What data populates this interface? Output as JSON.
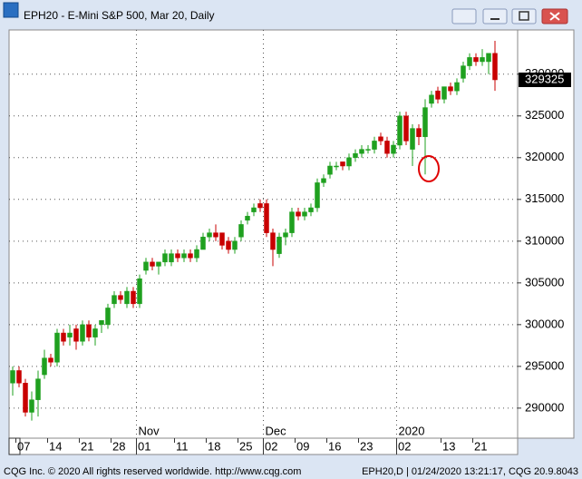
{
  "window": {
    "title": "EPH20 - E-Mini S&P 500, Mar 20, Daily",
    "status_left": "CQG Inc. © 2020 All rights reserved worldwide. http://www.cqg.com",
    "status_right": "EPH20,D | 01/24/2020 13:21:17, CQG 20.9.8043"
  },
  "chart_data": {
    "type": "candlestick",
    "up_color": "#1fa01f",
    "down_color": "#c80000",
    "grid": true,
    "ylim": [
      286400,
      335300
    ],
    "yticks": [
      290000,
      295000,
      300000,
      305000,
      310000,
      315000,
      320000,
      325000,
      330000
    ],
    "categories": [
      null,
      "07",
      null,
      null,
      null,
      null,
      "14",
      null,
      null,
      null,
      null,
      "21",
      null,
      null,
      null,
      null,
      "28",
      null,
      null,
      null,
      "01",
      null,
      null,
      null,
      null,
      null,
      "11",
      null,
      null,
      null,
      null,
      "18",
      null,
      null,
      null,
      null,
      "25",
      null,
      null,
      null,
      "02",
      null,
      null,
      null,
      null,
      "09",
      null,
      null,
      null,
      null,
      "16",
      null,
      null,
      null,
      null,
      "23",
      null,
      null,
      null,
      null,
      null,
      "02",
      null,
      null,
      null,
      null,
      null,
      null,
      "13",
      null,
      null,
      null,
      null,
      "21",
      null,
      null,
      null
    ],
    "x_groups": [
      {
        "label": "Nov",
        "start": 20
      },
      {
        "label": "Dec",
        "start": 40
      },
      {
        "label": "2020",
        "start": 61
      }
    ],
    "open": [
      293000,
      294500,
      293000,
      289500,
      291000,
      294000,
      296000,
      295500,
      299000,
      298500,
      299500,
      298000,
      300000,
      298500,
      300000,
      300000,
      302500,
      303500,
      302500,
      304000,
      302500,
      306500,
      307500,
      307000,
      307500,
      307500,
      308500,
      308000,
      308500,
      308000,
      309000,
      310500,
      311000,
      311000,
      310000,
      309000,
      310500,
      312500,
      313500,
      314500,
      314500,
      311000,
      308500,
      310500,
      311000,
      313500,
      313000,
      313500,
      314000,
      317000,
      318000,
      319000,
      319500,
      319000,
      320000,
      320500,
      321000,
      321000,
      322500,
      322000,
      320500,
      321500,
      325000,
      321000,
      323500,
      322500,
      326500,
      328000,
      327000,
      328500,
      328000,
      329500,
      331000,
      332000,
      331500,
      331500,
      332500
    ],
    "high": [
      295000,
      295000,
      293500,
      292000,
      294500,
      297000,
      296500,
      299500,
      299500,
      300000,
      300000,
      300500,
      300500,
      300000,
      300500,
      302500,
      304000,
      304000,
      304500,
      304500,
      306000,
      308000,
      308000,
      307500,
      309000,
      309000,
      309000,
      309000,
      309000,
      309500,
      311000,
      311500,
      312000,
      311000,
      310500,
      310500,
      312500,
      313500,
      314500,
      315000,
      315000,
      311500,
      311000,
      311500,
      314000,
      314000,
      314000,
      314500,
      317500,
      318000,
      319500,
      319500,
      319500,
      320500,
      321000,
      321500,
      321500,
      322500,
      323000,
      322500,
      322000,
      325500,
      325500,
      324000,
      324000,
      327000,
      328000,
      328500,
      328500,
      329000,
      329500,
      331500,
      332500,
      332500,
      333000,
      332500,
      334000
    ],
    "low": [
      291500,
      292500,
      289000,
      288500,
      289000,
      293500,
      295000,
      295000,
      297500,
      297500,
      297000,
      297500,
      298000,
      297500,
      299000,
      299500,
      302000,
      302500,
      302000,
      302000,
      302000,
      306000,
      306500,
      306000,
      307000,
      307000,
      307500,
      307500,
      307500,
      307500,
      309000,
      310000,
      310000,
      309000,
      308500,
      308500,
      310000,
      312000,
      313000,
      313500,
      310500,
      307000,
      308000,
      309500,
      310500,
      312500,
      312500,
      313000,
      313500,
      316500,
      317500,
      318500,
      318500,
      318500,
      319500,
      320000,
      320500,
      320500,
      321500,
      320000,
      320000,
      321000,
      321500,
      319000,
      321500,
      318000,
      326000,
      326500,
      326500,
      327500,
      327500,
      329000,
      330500,
      331000,
      331000,
      330000,
      328000
    ],
    "close": [
      294500,
      293000,
      289500,
      291000,
      293500,
      296000,
      295500,
      299000,
      298000,
      299000,
      298000,
      300000,
      298500,
      299500,
      300500,
      302000,
      303500,
      303000,
      304000,
      302500,
      305500,
      307500,
      307000,
      307500,
      308500,
      308500,
      308000,
      308500,
      308000,
      309000,
      310500,
      311000,
      310500,
      309500,
      309000,
      310000,
      312000,
      313000,
      314000,
      314000,
      311000,
      309000,
      310500,
      311000,
      313500,
      313000,
      313500,
      314000,
      317000,
      317500,
      319000,
      319000,
      319000,
      320000,
      320500,
      321000,
      321000,
      322000,
      322000,
      320500,
      321500,
      325000,
      322000,
      323500,
      322500,
      326000,
      327500,
      327000,
      328500,
      328000,
      329000,
      331000,
      332000,
      331500,
      332000,
      332500,
      329325
    ]
  }
}
